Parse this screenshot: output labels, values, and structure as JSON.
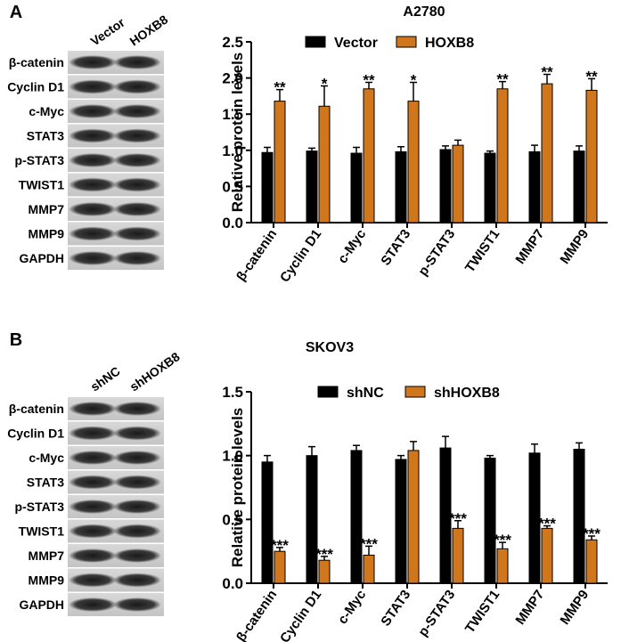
{
  "blots": [
    {
      "label": "A",
      "columns": [
        "Vector",
        "HOXB8"
      ],
      "rows": [
        "β-catenin",
        "Cyclin D1",
        "c-Myc",
        "STAT3",
        "p-STAT3",
        "TWIST1",
        "MMP7",
        "MMP9",
        "GAPDH"
      ]
    },
    {
      "label": "B",
      "columns": [
        "shNC",
        "shHOXB8"
      ],
      "rows": [
        "β-catenin",
        "Cyclin D1",
        "c-Myc",
        "STAT3",
        "p-STAT3",
        "TWIST1",
        "MMP7",
        "MMP9",
        "GAPDH"
      ]
    }
  ],
  "chart_data": [
    {
      "type": "bar",
      "title": "A2780",
      "y_label": "Relative protein levels",
      "categories": [
        "β-catenin",
        "Cyclin D1",
        "c-Myc",
        "STAT3",
        "p-STAT3",
        "TWIST1",
        "MMP7",
        "MMP9"
      ],
      "series": [
        {
          "name": "Vector",
          "color": "#000000",
          "values": [
            0.97,
            0.99,
            0.96,
            0.98,
            1.01,
            0.96,
            0.98,
            0.99
          ],
          "errors": [
            0.07,
            0.04,
            0.08,
            0.07,
            0.05,
            0.03,
            0.09,
            0.07
          ]
        },
        {
          "name": "HOXB8",
          "color": "#d0761c",
          "values": [
            1.68,
            1.61,
            1.85,
            1.68,
            1.07,
            1.85,
            1.92,
            1.83
          ],
          "errors": [
            0.16,
            0.28,
            0.09,
            0.26,
            0.07,
            0.1,
            0.13,
            0.16
          ]
        }
      ],
      "annotations": [
        "**",
        "*",
        "**",
        "*",
        null,
        "**",
        "**",
        "**"
      ],
      "ylim": [
        0,
        2.5
      ],
      "yticks": [
        {
          "value": 0,
          "label": "0.0"
        },
        0.5,
        {
          "value": 1,
          "label": "1.0"
        },
        1.5,
        {
          "value": 2,
          "label": "2.0"
        },
        2.5
      ],
      "grid": false
    },
    {
      "type": "bar",
      "title": "SKOV3",
      "y_label": "Relative protein levels",
      "categories": [
        "β-catenin",
        "Cyclin D1",
        "c-Myc",
        "STAT3",
        "p-STAT3",
        "TWIST1",
        "MMP7",
        "MMP9"
      ],
      "series": [
        {
          "name": "shNC",
          "color": "#000000",
          "values": [
            0.95,
            1.0,
            1.04,
            0.97,
            1.06,
            0.98,
            1.02,
            1.05
          ],
          "errors": [
            0.05,
            0.07,
            0.04,
            0.03,
            0.09,
            0.02,
            0.07,
            0.05
          ]
        },
        {
          "name": "shHOXB8",
          "color": "#d0761c",
          "values": [
            0.25,
            0.18,
            0.22,
            1.04,
            0.43,
            0.27,
            0.43,
            0.34
          ],
          "errors": [
            0.03,
            0.03,
            0.07,
            0.07,
            0.06,
            0.05,
            0.02,
            0.03
          ]
        }
      ],
      "annotations": [
        "***",
        "***",
        "***",
        null,
        "***",
        "***",
        "***",
        "***"
      ],
      "ylim": [
        0,
        1.5
      ],
      "yticks": [
        {
          "value": 0,
          "label": "0.0"
        },
        0.5,
        {
          "value": 1,
          "label": "1.0"
        },
        1.5
      ],
      "grid": false
    }
  ]
}
